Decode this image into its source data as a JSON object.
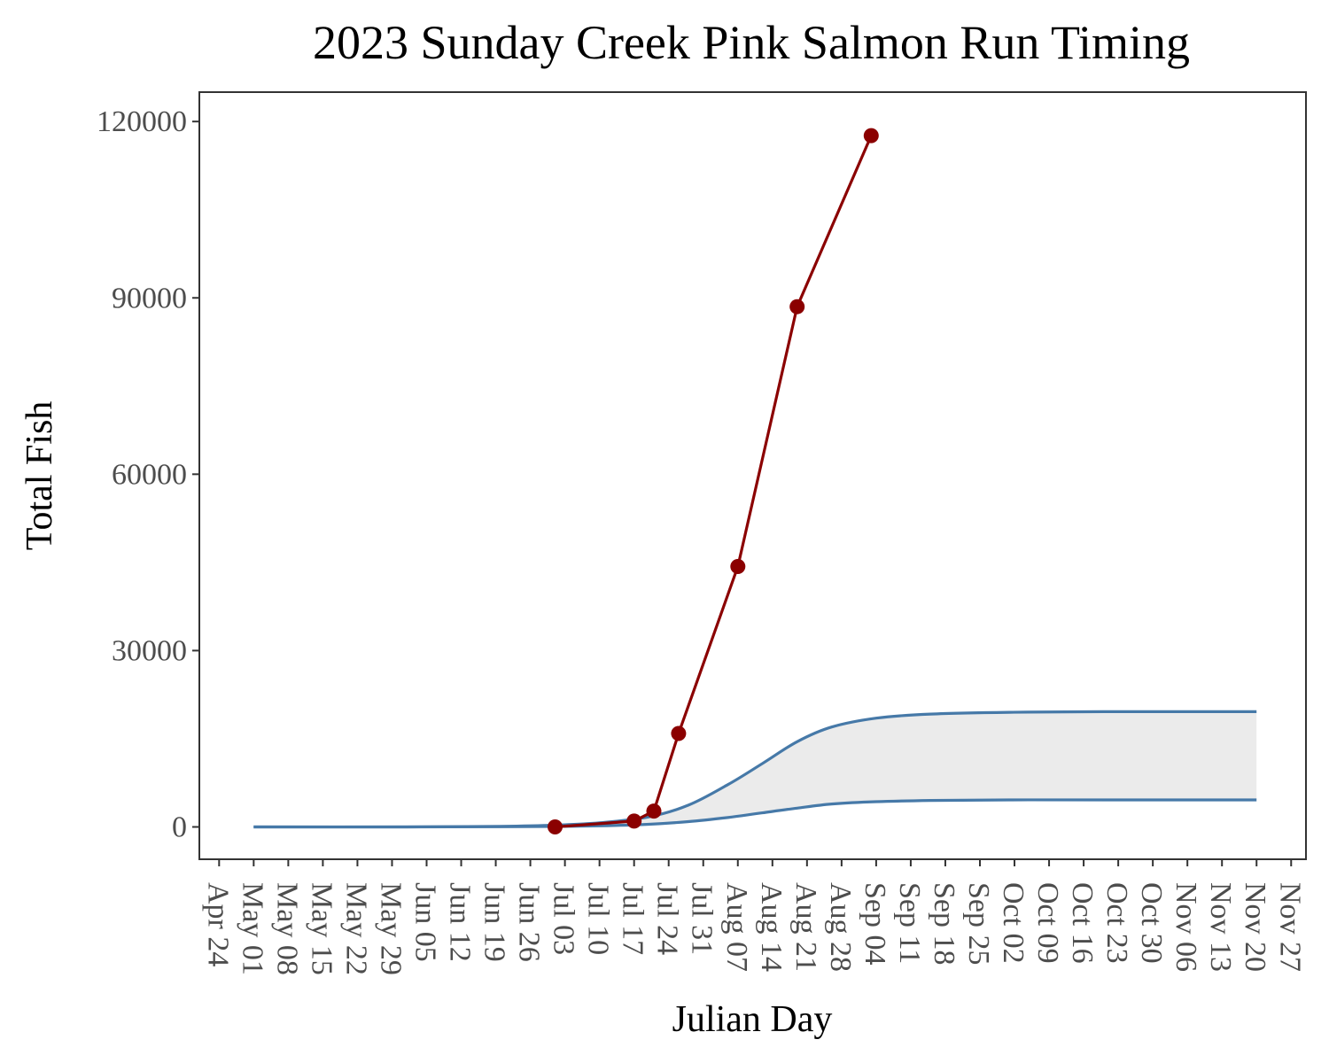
{
  "chart_data": {
    "type": "line",
    "title": "2023 Sunday Creek Pink Salmon Run Timing",
    "xlabel": "Julian Day",
    "ylabel": "Total Fish",
    "ylim": [
      -5500,
      125000
    ],
    "xlim": [
      "2023-04-20",
      "2023-11-30"
    ],
    "y_ticks": [
      0,
      30000,
      60000,
      90000,
      120000
    ],
    "y_tick_labels": [
      "0",
      "30000",
      "60000",
      "90000",
      "120000"
    ],
    "x_ticks": [
      "2023-04-24",
      "2023-05-01",
      "2023-05-08",
      "2023-05-15",
      "2023-05-22",
      "2023-05-29",
      "2023-06-05",
      "2023-06-12",
      "2023-06-19",
      "2023-06-26",
      "2023-07-03",
      "2023-07-10",
      "2023-07-17",
      "2023-07-24",
      "2023-07-31",
      "2023-08-07",
      "2023-08-14",
      "2023-08-21",
      "2023-08-28",
      "2023-09-04",
      "2023-09-11",
      "2023-09-18",
      "2023-09-25",
      "2023-10-02",
      "2023-10-09",
      "2023-10-16",
      "2023-10-23",
      "2023-10-30",
      "2023-11-06",
      "2023-11-13",
      "2023-11-20",
      "2023-11-27"
    ],
    "x_tick_labels": [
      "Apr 24",
      "May 01",
      "May 08",
      "May 15",
      "May 22",
      "May 29",
      "Jun 05",
      "Jun 12",
      "Jun 19",
      "Jun 26",
      "Jul 03",
      "Jul 10",
      "Jul 17",
      "Jul 24",
      "Jul 31",
      "Aug 07",
      "Aug 14",
      "Aug 21",
      "Aug 28",
      "Sep 04",
      "Sep 11",
      "Sep 18",
      "Sep 25",
      "Oct 02",
      "Oct 09",
      "Oct 16",
      "Oct 23",
      "Oct 30",
      "Nov 06",
      "Nov 13",
      "Nov 20",
      "Nov 27"
    ],
    "grid": false,
    "colors": {
      "observed": "#8b0000",
      "bounds": "#4679a8",
      "band": "#ebebeb",
      "frame": "#333333"
    },
    "observed": {
      "x": [
        "2023-07-01",
        "2023-07-17",
        "2023-07-21",
        "2023-07-26",
        "2023-08-07",
        "2023-08-19",
        "2023-09-03"
      ],
      "y": [
        0,
        1000,
        2700,
        15900,
        44300,
        88500,
        117600
      ]
    },
    "upper_bound": {
      "x": [
        "2023-05-01",
        "2023-06-01",
        "2023-06-20",
        "2023-07-01",
        "2023-07-10",
        "2023-07-20",
        "2023-07-28",
        "2023-08-05",
        "2023-08-12",
        "2023-08-19",
        "2023-08-26",
        "2023-09-04",
        "2023-09-15",
        "2023-10-01",
        "2023-10-20",
        "2023-11-20"
      ],
      "y": [
        0,
        0,
        100,
        300,
        700,
        1700,
        3700,
        7200,
        10800,
        14500,
        17000,
        18500,
        19200,
        19500,
        19600,
        19600
      ]
    },
    "lower_bound": {
      "x": [
        "2023-05-01",
        "2023-06-01",
        "2023-06-20",
        "2023-07-01",
        "2023-07-10",
        "2023-07-20",
        "2023-07-28",
        "2023-08-05",
        "2023-08-12",
        "2023-08-19",
        "2023-08-26",
        "2023-09-04",
        "2023-09-15",
        "2023-10-01",
        "2023-10-20",
        "2023-11-20"
      ],
      "y": [
        0,
        0,
        30,
        80,
        180,
        450,
        900,
        1600,
        2400,
        3200,
        3900,
        4300,
        4500,
        4600,
        4600,
        4600
      ]
    }
  }
}
